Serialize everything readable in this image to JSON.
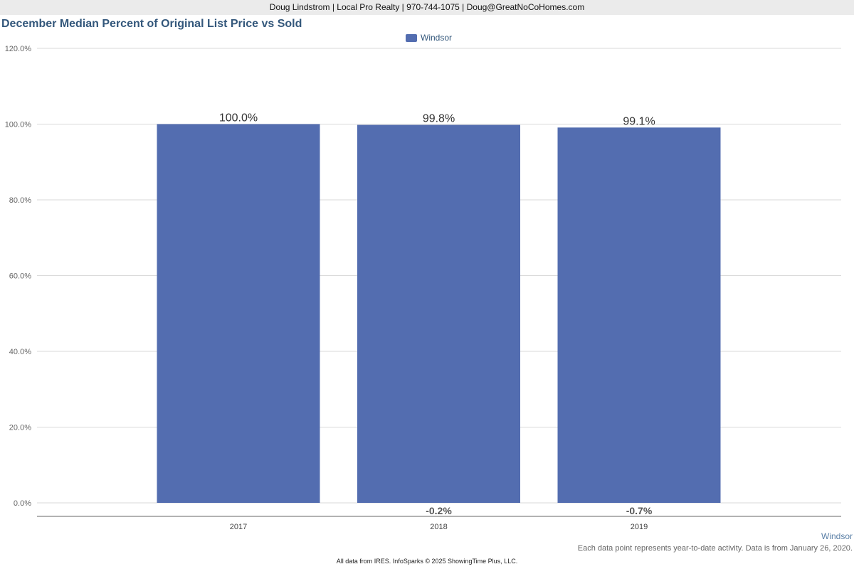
{
  "header": {
    "contact": "Doug Lindstrom | Local Pro Realty | 970-744-1075 | Doug@GreatNoCoHomes.com"
  },
  "chart_data": {
    "type": "bar",
    "title": "December Median Percent of Original List Price vs Sold",
    "xlabel": "",
    "ylabel": "",
    "categories": [
      "2017",
      "2018",
      "2019"
    ],
    "series": [
      {
        "name": "Windsor",
        "color": "#536db0",
        "values": [
          100.0,
          99.8,
          99.1
        ],
        "labels": [
          "100.0%",
          "99.8%",
          "99.1%"
        ],
        "changes": [
          "",
          "-0.2%",
          "-0.7%"
        ]
      }
    ],
    "ylim": [
      0,
      120
    ],
    "yticks": [
      "0.0%",
      "20.0%",
      "40.0%",
      "60.0%",
      "80.0%",
      "100.0%",
      "120.0%"
    ],
    "ytick_values": [
      0,
      20,
      40,
      60,
      80,
      100,
      120
    ],
    "grid": true,
    "legend_position": "top-center"
  },
  "series_corner_label": "Windsor",
  "note": "Each data point represents year-to-date activity. Data is from January 26, 2020.",
  "footer": "All data from IRES. InfoSparks © 2025 ShowingTime Plus, LLC."
}
